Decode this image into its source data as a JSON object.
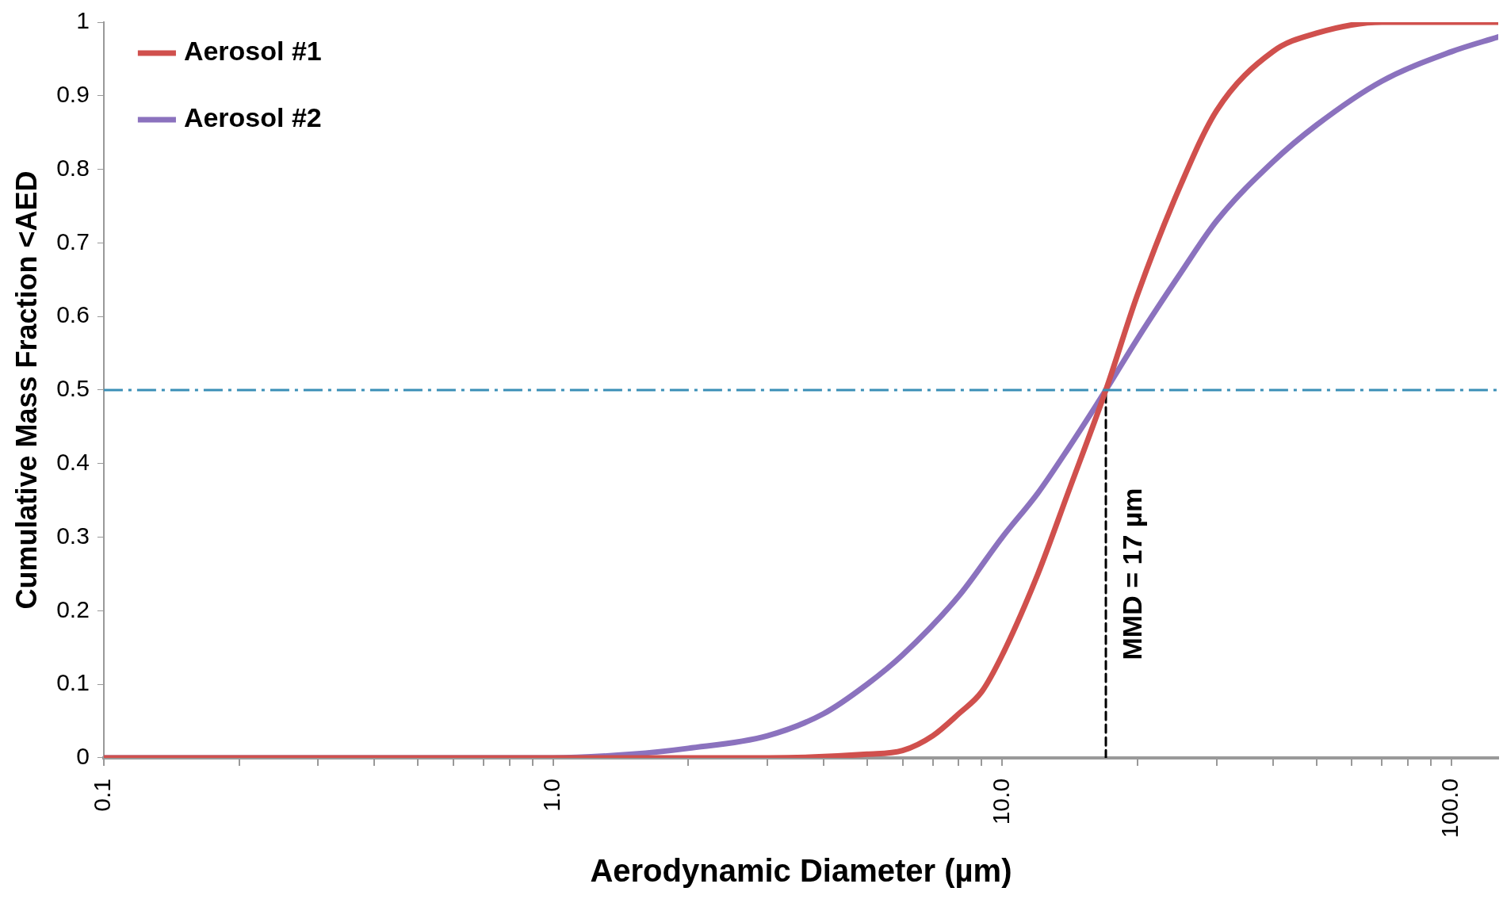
{
  "chart_data": {
    "type": "line",
    "xlabel": "Aerodynamic Diameter (µm)",
    "ylabel": "Cumulative Mass Fraction <AED",
    "log": "x",
    "grid": false,
    "legend": "top left",
    "marker": "none",
    "line_style": "solid",
    "xlim": [
      0.1,
      127
    ],
    "ylim": [
      0,
      1
    ],
    "xticks": [
      {
        "value": 0.1,
        "label": "0.1"
      },
      {
        "value": 0.2,
        "label": null
      },
      {
        "value": 0.3,
        "label": null
      },
      {
        "value": 0.4,
        "label": null
      },
      {
        "value": 0.5,
        "label": null
      },
      {
        "value": 0.6,
        "label": null
      },
      {
        "value": 0.7,
        "label": null
      },
      {
        "value": 0.8,
        "label": null
      },
      {
        "value": 0.9,
        "label": null
      },
      {
        "value": 1,
        "label": "1.0"
      },
      {
        "value": 2,
        "label": null
      },
      {
        "value": 3,
        "label": null
      },
      {
        "value": 4,
        "label": null
      },
      {
        "value": 5,
        "label": null
      },
      {
        "value": 6,
        "label": null
      },
      {
        "value": 7,
        "label": null
      },
      {
        "value": 8,
        "label": null
      },
      {
        "value": 9,
        "label": null
      },
      {
        "value": 10,
        "label": "10.0"
      },
      {
        "value": 20,
        "label": null
      },
      {
        "value": 30,
        "label": null
      },
      {
        "value": 40,
        "label": null
      },
      {
        "value": 50,
        "label": null
      },
      {
        "value": 60,
        "label": null
      },
      {
        "value": 70,
        "label": null
      },
      {
        "value": 80,
        "label": null
      },
      {
        "value": 90,
        "label": null
      },
      {
        "value": 100,
        "label": "100.0"
      }
    ],
    "yticks": [
      0,
      0.1,
      0.2,
      0.3,
      0.4,
      0.5,
      0.6,
      0.7,
      0.8,
      0.9,
      1
    ],
    "series": [
      {
        "name": "Aerosol #1",
        "color": "#d0504d",
        "x": [
          0.1,
          1,
          3,
          5,
          6,
          7,
          8,
          9,
          10,
          12,
          14,
          17,
          20,
          25,
          30,
          40,
          50,
          70,
          127
        ],
        "values": [
          0,
          0,
          0,
          0.005,
          0.01,
          0.03,
          0.06,
          0.09,
          0.14,
          0.25,
          0.36,
          0.5,
          0.63,
          0.78,
          0.88,
          0.96,
          0.985,
          1,
          1
        ]
      },
      {
        "name": "Aerosol #2",
        "color": "#8b72be",
        "x": [
          0.1,
          1,
          1.5,
          2,
          3,
          4,
          5,
          6,
          8,
          10,
          12,
          14,
          17,
          20,
          25,
          30,
          40,
          50,
          70,
          100,
          127
        ],
        "values": [
          0,
          0,
          0.005,
          0.013,
          0.03,
          0.06,
          0.1,
          0.14,
          0.22,
          0.3,
          0.36,
          0.42,
          0.5,
          0.57,
          0.66,
          0.73,
          0.81,
          0.86,
          0.92,
          0.96,
          0.98
        ]
      },
      {
        "color": "#000000",
        "line_style": "dashed",
        "x": [
          17,
          17
        ],
        "values": [
          0,
          0.5
        ]
      }
    ],
    "annotations": [
      {
        "text": "MMD = 17 µm",
        "x": 17,
        "y": 0.25
      }
    ],
    "ref_lines": [
      {
        "axis": "y",
        "value": 0.5,
        "color": "#3a8fb7",
        "line_style": "dashdot"
      }
    ]
  }
}
